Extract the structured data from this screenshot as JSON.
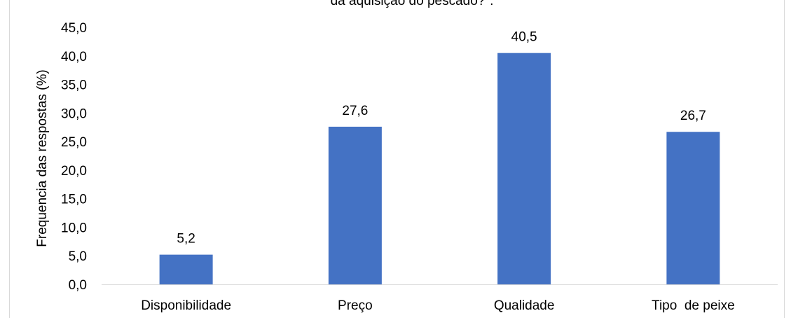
{
  "chart_data": {
    "type": "bar",
    "title": "da aquisição do pescado?\".",
    "xlabel": "",
    "ylabel": "Frequencia das respostas (%)",
    "categories": [
      "Disponibilidade",
      "Preço",
      "Qualidade",
      "Tipo  de peixe"
    ],
    "values": [
      5.2,
      27.6,
      40.5,
      26.7
    ],
    "value_labels": [
      "5,2",
      "27,6",
      "40,5",
      "26,7"
    ],
    "ylim": [
      0,
      45
    ],
    "yticks": [
      0,
      5,
      10,
      15,
      20,
      25,
      30,
      35,
      40,
      45
    ],
    "ytick_labels": [
      "0,0",
      "5,0",
      "10,0",
      "15,0",
      "20,0",
      "25,0",
      "30,0",
      "35,0",
      "40,0",
      "45,0"
    ],
    "grid": false,
    "legend": "none",
    "bar_color": "#4472C4",
    "axis_color": "#d9d9d9"
  }
}
